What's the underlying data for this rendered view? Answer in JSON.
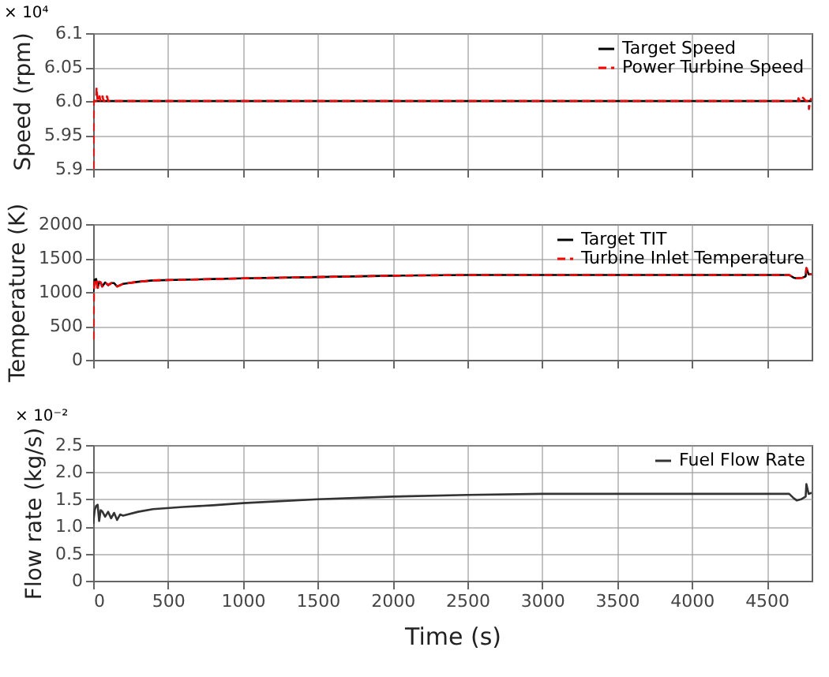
{
  "chart_data": [
    {
      "type": "line",
      "ylabel": "Speed (rpm)",
      "annotations": [
        "× 10⁴"
      ],
      "xlim": [
        0,
        4800
      ],
      "xticks": [
        0,
        500,
        1000,
        1500,
        2000,
        2500,
        3000,
        3500,
        4000,
        4500
      ],
      "ylim": [
        5.9,
        6.1
      ],
      "yticks": [
        {
          "value": 5.9,
          "label": "5.9"
        },
        5.95,
        {
          "value": 6,
          "label": "6.0"
        },
        6.05,
        {
          "value": 6.1,
          "label": "6.1"
        }
      ],
      "grid": true,
      "legend": "top right",
      "tick_labels": "y",
      "marker": "none",
      "series": [
        {
          "name": "Target Speed",
          "color": "#000000",
          "line_style": "solid",
          "x": [
            0,
            4800
          ],
          "values": [
            6.0,
            6.0
          ]
        },
        {
          "name": "Power Turbine Speed",
          "color": "#ff0000",
          "line_style": "dashed",
          "x": [
            0,
            3,
            10,
            20,
            22,
            30,
            40,
            42,
            50,
            60,
            62,
            70,
            80,
            90,
            92,
            100,
            4700,
            4710,
            4712,
            4720,
            4740,
            4742,
            4760,
            4780,
            4782,
            4790,
            4795,
            4800
          ],
          "values": [
            5.9,
            6.0,
            6.0,
            6.0,
            6.02,
            6.0,
            6.0,
            6.007,
            6.0,
            6.0,
            6.007,
            6.0,
            6.0,
            6.0,
            6.007,
            6.0,
            6.0,
            6.0,
            6.004,
            6.0,
            6.0,
            6.005,
            6.0,
            6.0,
            5.988,
            6.0,
            6.003,
            6.0
          ]
        }
      ]
    },
    {
      "type": "line",
      "ylabel": "Temperature (K)",
      "xlim": [
        0,
        4800
      ],
      "xticks": [
        0,
        500,
        1000,
        1500,
        2000,
        2500,
        3000,
        3500,
        4000,
        4500
      ],
      "ylim": [
        0,
        2000
      ],
      "yticks": [
        0,
        500,
        1000,
        1500,
        2000
      ],
      "grid": true,
      "legend": "top right",
      "tick_labels": "y",
      "marker": "none",
      "series": [
        {
          "name": "Target TIT",
          "color": "#000000",
          "line_style": "solid",
          "x": [
            0,
            10,
            20,
            30,
            40,
            50,
            60,
            80,
            100,
            120,
            140,
            160,
            200,
            300,
            400,
            600,
            800,
            1000,
            1500,
            2000,
            2500,
            3000,
            3500,
            4000,
            4650,
            4680,
            4700,
            4740,
            4760,
            4765,
            4780,
            4800
          ],
          "values": [
            1000,
            1180,
            1190,
            1060,
            1150,
            1140,
            1080,
            1140,
            1100,
            1130,
            1130,
            1080,
            1120,
            1150,
            1170,
            1180,
            1190,
            1200,
            1220,
            1240,
            1250,
            1250,
            1250,
            1250,
            1250,
            1210,
            1200,
            1210,
            1230,
            1350,
            1260,
            1260
          ]
        },
        {
          "name": "Turbine Inlet Temperature",
          "color": "#ff0000",
          "line_style": "dashed",
          "x": [
            0,
            5,
            10,
            20,
            30,
            40,
            50,
            60,
            80,
            100,
            120,
            140,
            160,
            200,
            300,
            400,
            600,
            800,
            1000,
            1500,
            2000,
            2500,
            3000,
            3500,
            4000,
            4650,
            4680,
            4700,
            4740,
            4760,
            4765,
            4780,
            4800
          ],
          "values": [
            300,
            1000,
            1180,
            1190,
            1060,
            1150,
            1140,
            1080,
            1140,
            1100,
            1130,
            1130,
            1080,
            1120,
            1150,
            1170,
            1180,
            1190,
            1200,
            1220,
            1240,
            1250,
            1250,
            1250,
            1250,
            1250,
            1210,
            1200,
            1210,
            1230,
            1350,
            1260,
            1260
          ]
        }
      ]
    },
    {
      "type": "line",
      "xlabel": "Time (s)",
      "ylabel": "Flow rate (kg/s)",
      "annotations": [
        "× 10⁻²"
      ],
      "xlim": [
        0,
        4800
      ],
      "xticks": [
        0,
        500,
        1000,
        1500,
        2000,
        2500,
        3000,
        3500,
        4000,
        4500
      ],
      "ylim": [
        0,
        2.5
      ],
      "yticks": [
        {
          "value": 0,
          "label": "0"
        },
        0.5,
        {
          "value": 1,
          "label": "1.0"
        },
        1.5,
        {
          "value": 2,
          "label": "2.0"
        },
        2.5
      ],
      "grid": true,
      "legend": "top right",
      "marker": "none",
      "series": [
        {
          "name": "Fuel Flow Rate",
          "color": "#333333",
          "line_style": "solid",
          "x": [
            0,
            10,
            20,
            30,
            40,
            50,
            60,
            80,
            100,
            120,
            140,
            160,
            180,
            200,
            300,
            400,
            600,
            800,
            1000,
            1500,
            2000,
            2500,
            3000,
            3500,
            4000,
            4650,
            4680,
            4700,
            4730,
            4760,
            4765,
            4780,
            4800
          ],
          "values": [
            1.05,
            1.3,
            1.38,
            1.4,
            1.1,
            1.3,
            1.28,
            1.18,
            1.27,
            1.15,
            1.25,
            1.12,
            1.22,
            1.2,
            1.27,
            1.32,
            1.36,
            1.39,
            1.43,
            1.5,
            1.55,
            1.58,
            1.6,
            1.6,
            1.6,
            1.6,
            1.52,
            1.48,
            1.5,
            1.55,
            1.78,
            1.6,
            1.62
          ]
        }
      ]
    }
  ]
}
